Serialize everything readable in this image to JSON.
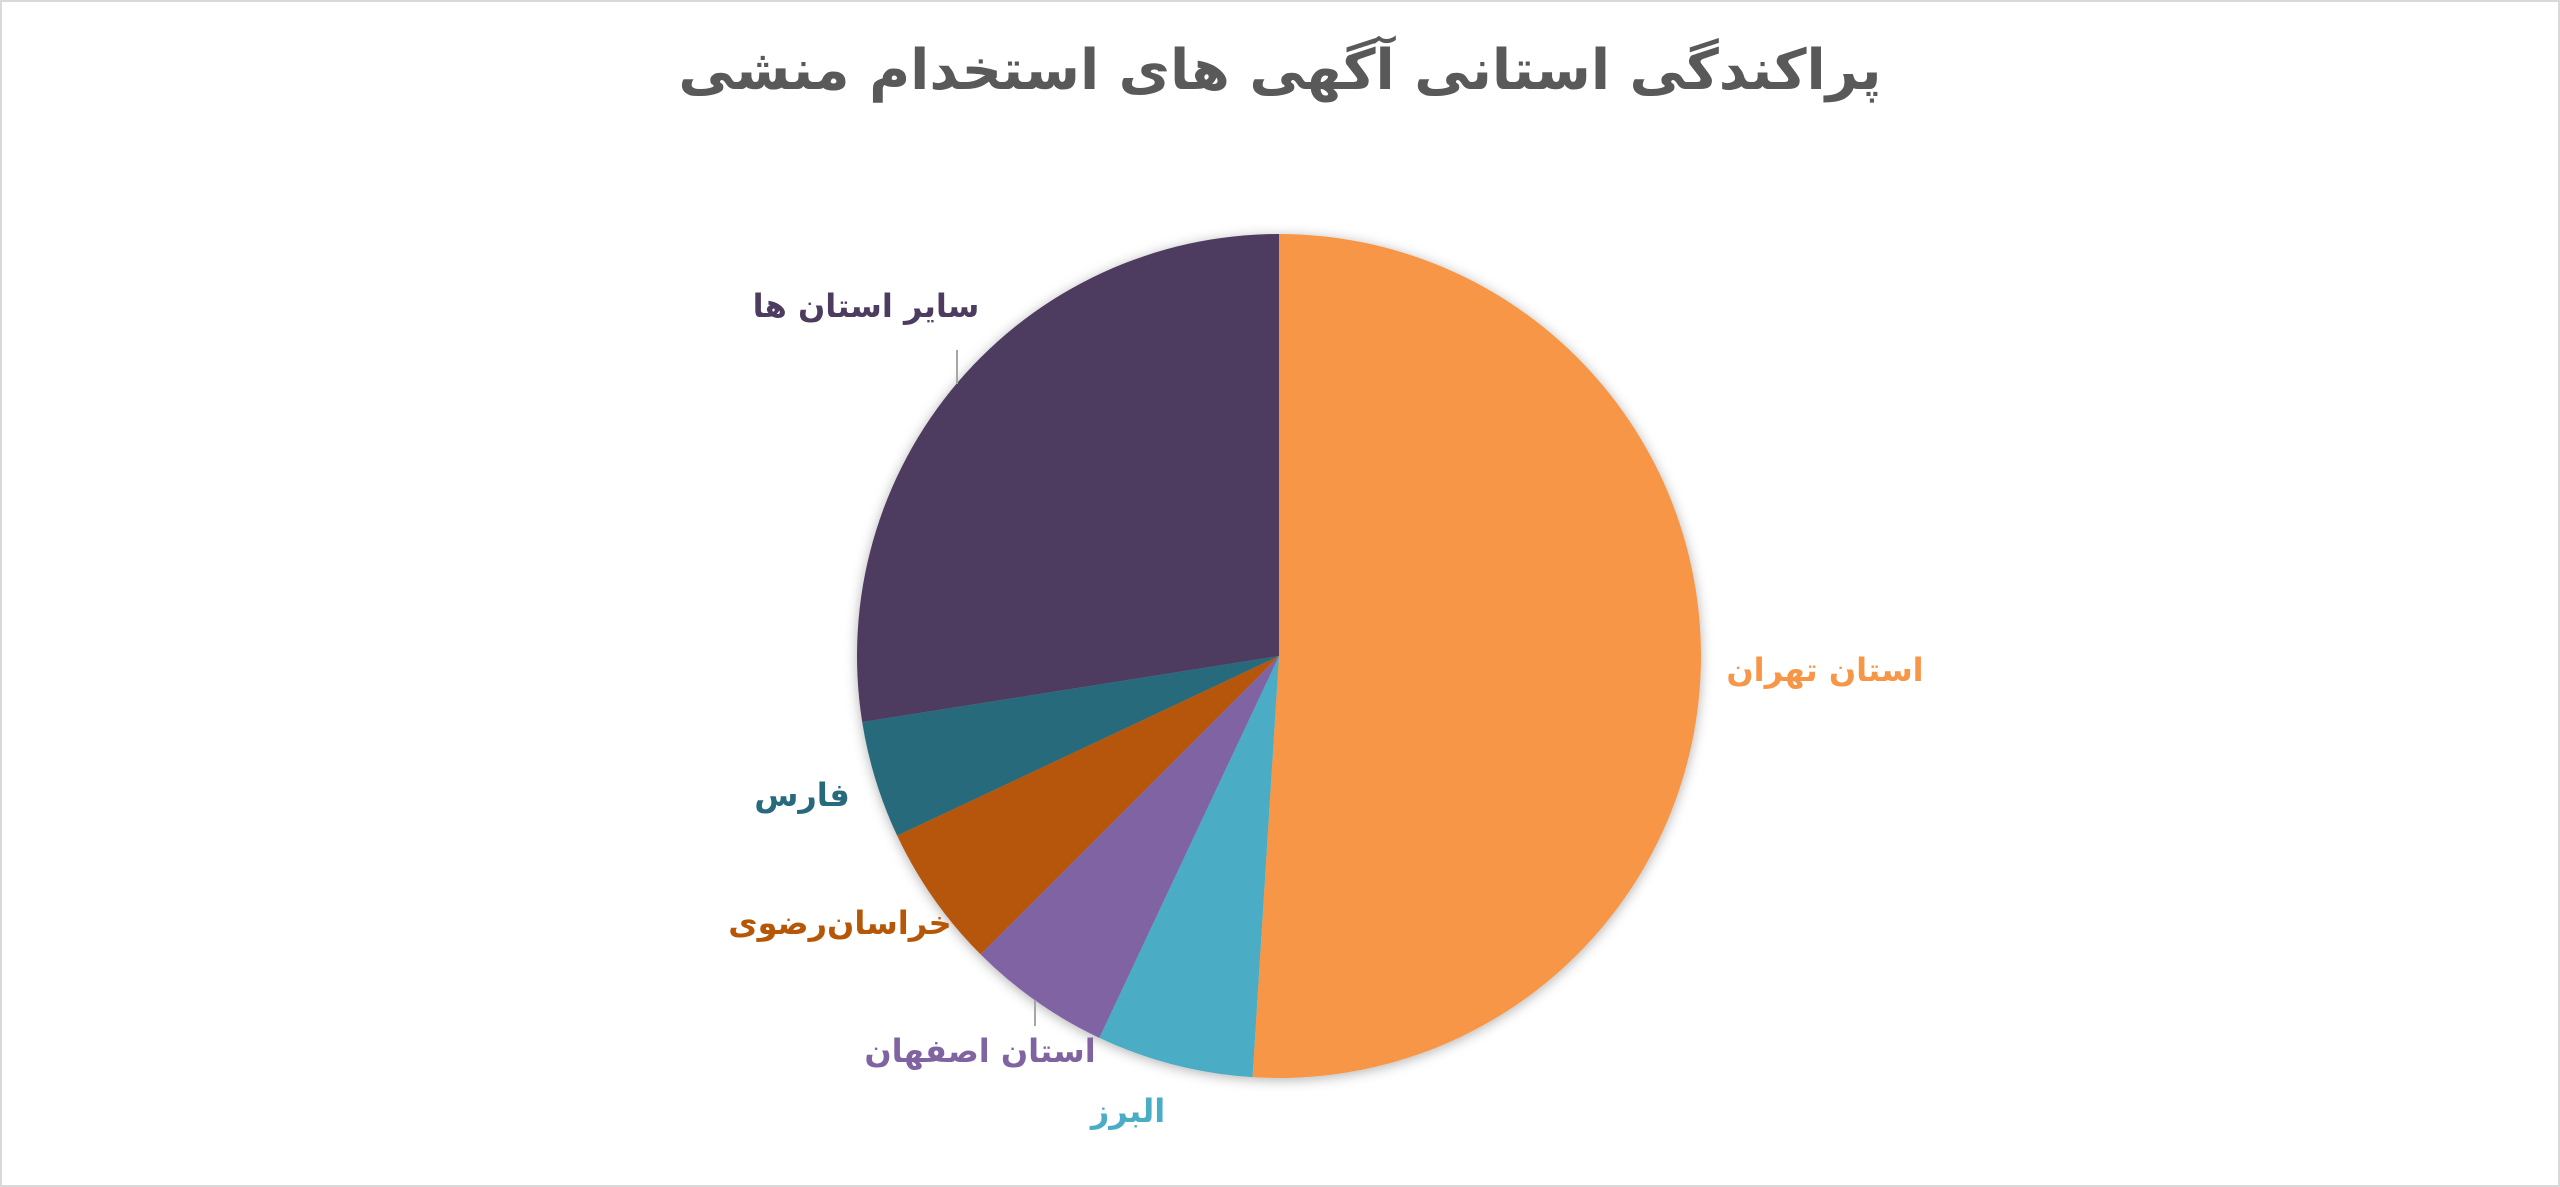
{
  "chart_data": {
    "type": "pie",
    "title": "پراکندگی استانی آگهی های استخدام منشی",
    "categories": [
      "استان تهران",
      "البرز",
      "استان اصفهان",
      "خراسان‌رضوی",
      "فارس",
      "سایر استان ها"
    ],
    "values": [
      51,
      6,
      5.5,
      5.5,
      4.5,
      27.5
    ],
    "colors": [
      "#f79646",
      "#4bacc6",
      "#8064a2",
      "#b65708",
      "#276a7c",
      "#4e3b60"
    ]
  }
}
